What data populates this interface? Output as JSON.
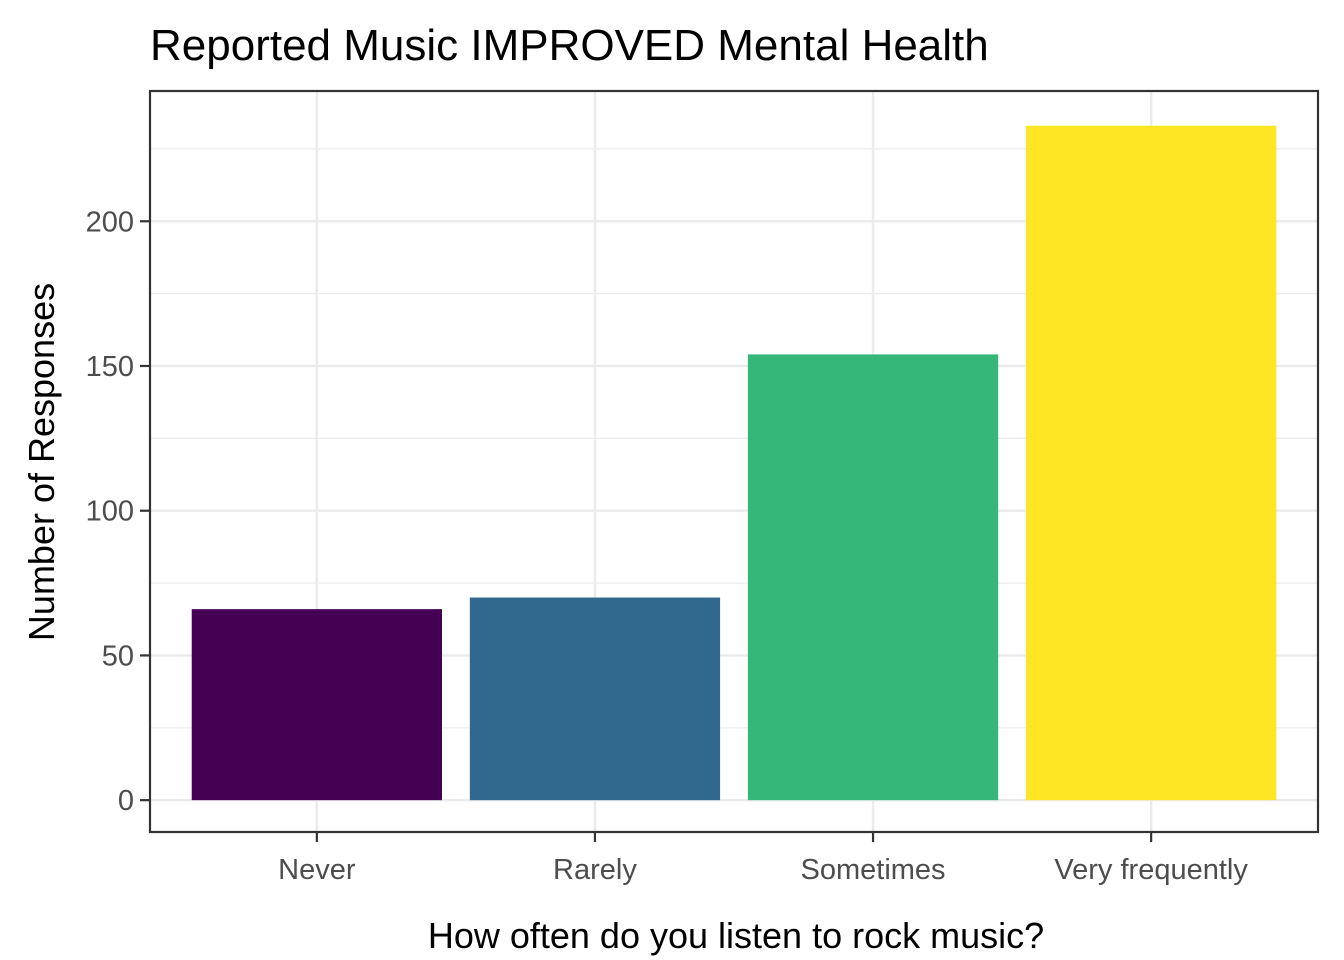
{
  "chart_data": {
    "type": "bar",
    "title": "Reported Music IMPROVED Mental Health",
    "xlabel": "How often do you listen to rock music?",
    "ylabel": "Number of Responses",
    "categories": [
      "Never",
      "Rarely",
      "Sometimes",
      "Very frequently"
    ],
    "values": [
      66,
      70,
      154,
      233
    ],
    "colors": [
      "#440154",
      "#31688E",
      "#35B779",
      "#FDE725"
    ],
    "ylim": [
      -11,
      245
    ],
    "yticks": [
      0,
      50,
      100,
      150,
      200
    ],
    "grid": true,
    "legend": "none"
  }
}
